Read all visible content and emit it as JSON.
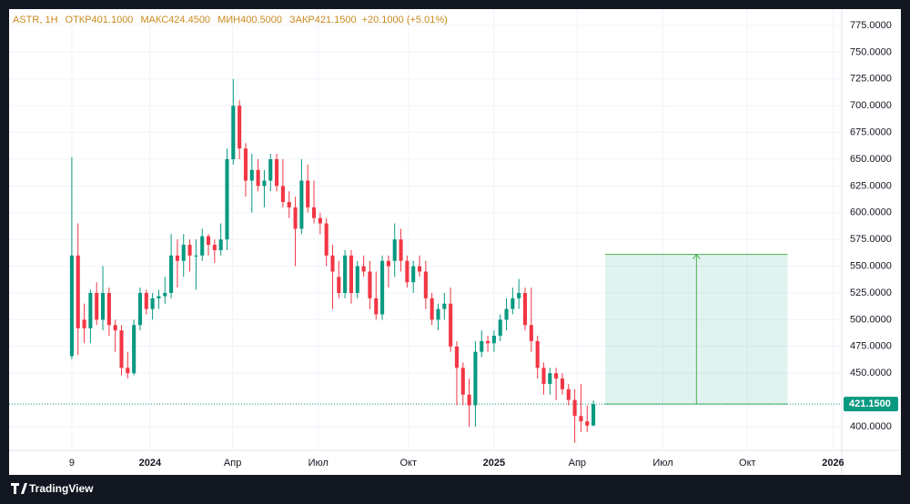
{
  "chart_data": {
    "type": "candlestick",
    "symbol": "ASTR, 1H",
    "legend": [
      {
        "label": "ОТКР",
        "value": "401.1000"
      },
      {
        "label": "МАКС",
        "value": "424.4500"
      },
      {
        "label": "МИН",
        "value": "400.5000"
      },
      {
        "label": "ЗАКР",
        "value": "421.1500"
      }
    ],
    "change": "+20.1000 (+5.01%)",
    "last_price": {
      "value": 421.15,
      "label": "421.1500"
    },
    "up_color": "#089981",
    "down_color": "#f23645",
    "x": [
      0,
      1,
      2,
      3,
      4,
      5,
      6,
      7,
      8,
      9,
      10,
      11,
      12,
      13,
      14,
      15,
      16,
      17,
      18,
      19,
      20,
      21,
      22,
      23,
      24,
      25,
      26,
      27,
      28,
      29,
      30,
      31,
      32,
      33,
      34,
      35,
      36,
      37,
      38,
      39,
      40,
      41,
      42,
      43,
      44,
      45,
      46,
      47,
      48,
      49,
      50,
      51,
      52,
      53,
      54,
      55,
      56,
      57,
      58,
      59,
      60,
      61,
      62,
      63,
      64,
      65,
      66,
      67,
      68,
      69,
      70,
      71,
      72,
      73,
      74,
      75,
      76,
      77,
      78,
      79,
      80,
      81,
      82,
      83,
      84
    ],
    "open": [
      466,
      560,
      500,
      492,
      525,
      500,
      525,
      495,
      490,
      455,
      450,
      495,
      525,
      510,
      520,
      522,
      525,
      560,
      555,
      570,
      560,
      560,
      578,
      570,
      565,
      575,
      650,
      700,
      660,
      630,
      640,
      625,
      630,
      650,
      625,
      610,
      605,
      585,
      630,
      605,
      595,
      590,
      560,
      540,
      525,
      560,
      525,
      550,
      545,
      520,
      505,
      555,
      555,
      575,
      555,
      535,
      550,
      545,
      520,
      500,
      510,
      515,
      475,
      455,
      430,
      420,
      470,
      480,
      478,
      485,
      500,
      510,
      520,
      525,
      495,
      480,
      455,
      440,
      450,
      445,
      435,
      425,
      410,
      405,
      401.1
    ],
    "high": [
      652,
      590,
      515,
      528,
      535,
      550,
      530,
      500,
      495,
      470,
      500,
      530,
      528,
      525,
      528,
      540,
      580,
      575,
      580,
      575,
      575,
      585,
      580,
      575,
      590,
      660,
      725,
      705,
      665,
      655,
      650,
      640,
      655,
      655,
      650,
      620,
      615,
      650,
      645,
      630,
      600,
      595,
      570,
      555,
      565,
      565,
      555,
      560,
      555,
      545,
      560,
      560,
      590,
      585,
      560,
      555,
      560,
      555,
      525,
      515,
      525,
      530,
      480,
      460,
      445,
      480,
      490,
      485,
      490,
      505,
      520,
      530,
      538,
      530,
      530,
      485,
      460,
      455,
      455,
      450,
      440,
      435,
      440,
      420,
      424.45
    ],
    "low": [
      463,
      467,
      478,
      478,
      495,
      490,
      485,
      470,
      448,
      445,
      448,
      490,
      505,
      500,
      510,
      515,
      520,
      530,
      540,
      545,
      528,
      555,
      560,
      553,
      560,
      565,
      645,
      650,
      615,
      600,
      620,
      605,
      620,
      620,
      605,
      595,
      550,
      580,
      600,
      590,
      580,
      550,
      510,
      520,
      520,
      515,
      520,
      540,
      510,
      500,
      500,
      530,
      540,
      545,
      530,
      525,
      540,
      510,
      495,
      490,
      500,
      470,
      420,
      420,
      400,
      400,
      465,
      470,
      470,
      480,
      490,
      505,
      510,
      490,
      470,
      445,
      430,
      430,
      425,
      430,
      420,
      385,
      395,
      395,
      400.5
    ],
    "close": [
      560,
      492,
      492,
      525,
      500,
      525,
      495,
      490,
      455,
      450,
      495,
      525,
      510,
      520,
      522,
      525,
      560,
      555,
      570,
      560,
      560,
      578,
      570,
      565,
      575,
      650,
      700,
      660,
      630,
      640,
      625,
      630,
      650,
      625,
      610,
      605,
      585,
      630,
      605,
      595,
      590,
      560,
      545,
      525,
      560,
      525,
      550,
      545,
      520,
      505,
      555,
      550,
      575,
      555,
      535,
      550,
      545,
      520,
      500,
      510,
      515,
      475,
      455,
      430,
      420,
      470,
      480,
      478,
      485,
      500,
      510,
      520,
      525,
      495,
      480,
      455,
      440,
      450,
      445,
      435,
      425,
      410,
      405,
      401,
      421.15
    ],
    "projection": {
      "x_from": 85.9,
      "x_to": 115.3,
      "from": 421.15,
      "to": 561
    },
    "xlim": [
      -10.1,
      124.0
    ],
    "xticks": [
      {
        "value": 0,
        "label": "9"
      },
      {
        "value": 12.6,
        "label": "2024"
      },
      {
        "value": 25.9,
        "label": "Апр"
      },
      {
        "value": 39.7,
        "label": "Июл"
      },
      {
        "value": 54.2,
        "label": "Окт"
      },
      {
        "value": 68,
        "label": "2025"
      },
      {
        "value": 81.4,
        "label": "Апр"
      },
      {
        "value": 95.2,
        "label": "Июл"
      },
      {
        "value": 108.8,
        "label": "Окт"
      },
      {
        "value": 122.6,
        "label": "2026"
      }
    ],
    "ylim": [
      377.9,
      790.3
    ],
    "yticks": [
      {
        "value": 400,
        "label": "400.0000"
      },
      {
        "value": 450,
        "label": "450.0000"
      },
      {
        "value": 475,
        "label": "475.0000"
      },
      {
        "value": 500,
        "label": "500.0000"
      },
      {
        "value": 525,
        "label": "525.0000"
      },
      {
        "value": 550,
        "label": "550.0000"
      },
      {
        "value": 575,
        "label": "575.0000"
      },
      {
        "value": 600,
        "label": "600.0000"
      },
      {
        "value": 625,
        "label": "625.0000"
      },
      {
        "value": 650,
        "label": "650.0000"
      },
      {
        "value": 675,
        "label": "675.0000"
      },
      {
        "value": 700,
        "label": "700.0000"
      },
      {
        "value": 725,
        "label": "725.0000"
      },
      {
        "value": 750,
        "label": "750.0000"
      },
      {
        "value": 775,
        "label": "775.0000"
      }
    ],
    "brand": "TradingView"
  }
}
